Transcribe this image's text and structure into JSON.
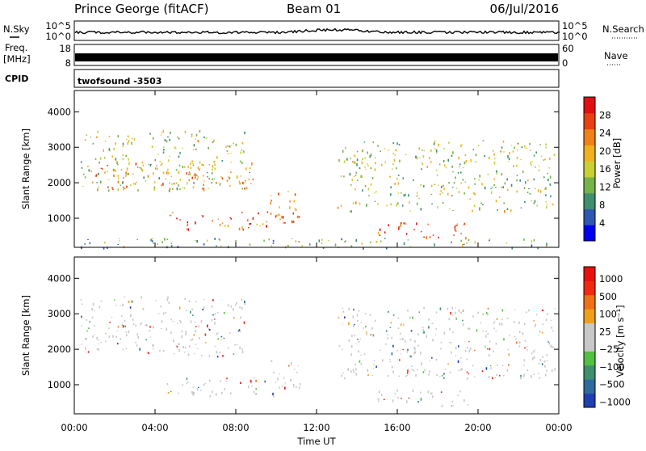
{
  "header": {
    "station": "Prince George (fitACF)",
    "beam": "Beam 01",
    "date": "06/Jul/2016"
  },
  "top_panels": {
    "nsky_label": "N.Sky",
    "nsky_ticks": [
      "10^5",
      "10^0"
    ],
    "nsearch_label": "N.Search",
    "nsearch_ticks": [
      "10^5",
      "10^0"
    ],
    "freq_label_line1": "Freq.",
    "freq_label_line2": "[MHz]",
    "freq_ticks": [
      "18",
      "8"
    ],
    "nave_label": "Nave",
    "nave_ticks": [
      "60",
      "0"
    ],
    "cpid_label": "CPID",
    "cpid_value": "twofsound -3503"
  },
  "colors": {
    "power_scale": [
      "#0000ee",
      "#2f56b0",
      "#3f8f6e",
      "#76b24a",
      "#c8d035",
      "#f0b020",
      "#f08018",
      "#e84010",
      "#e01010"
    ],
    "velocity_scale": [
      "#1f3fb0",
      "#2e6a9a",
      "#3f8f6e",
      "#52c040",
      "#c8c8c8",
      "#c8c8c8",
      "#f0a018",
      "#f07018",
      "#f02a10",
      "#e81010"
    ]
  },
  "chart_data": [
    {
      "type": "heatmap",
      "name": "power",
      "ylabel": "Slant Range [km]",
      "ylim": [
        180,
        4600
      ],
      "yticks": [
        1000,
        2000,
        3000,
        4000
      ],
      "x_ticks": [
        "00:00",
        "04:00",
        "08:00",
        "12:00",
        "16:00",
        "20:00",
        "00:00"
      ],
      "xlim_hours": [
        0,
        24
      ],
      "colorbar": {
        "label": "Power [dB]",
        "range": [
          0,
          32
        ],
        "ticks": [
          "4",
          "8",
          "12",
          "16",
          "20",
          "24",
          "28"
        ]
      },
      "regions": [
        {
          "t": [
            0.3,
            8.5
          ],
          "r": [
            1800,
            3500
          ],
          "level": 0.45
        },
        {
          "t": [
            1.0,
            9.0
          ],
          "r": [
            1800,
            2600
          ],
          "level": 0.7
        },
        {
          "t": [
            4.5,
            10.5
          ],
          "r": [
            700,
            1200
          ],
          "level": 0.9
        },
        {
          "t": [
            9.5,
            11.2
          ],
          "r": [
            900,
            1800
          ],
          "level": 0.75
        },
        {
          "t": [
            13.0,
            23.8
          ],
          "r": [
            1200,
            3200
          ],
          "level": 0.45
        },
        {
          "t": [
            15.0,
            19.5
          ],
          "r": [
            400,
            900
          ],
          "level": 0.9
        },
        {
          "t": [
            0,
            24
          ],
          "r": [
            180,
            450
          ],
          "level": 0.35
        }
      ]
    },
    {
      "type": "heatmap",
      "name": "velocity",
      "ylabel": "Slant Range [km]",
      "xlabel": "Time UT",
      "ylim": [
        180,
        4600
      ],
      "yticks": [
        1000,
        2000,
        3000,
        4000
      ],
      "x_ticks": [
        "00:00",
        "04:00",
        "08:00",
        "12:00",
        "16:00",
        "20:00",
        "00:00"
      ],
      "xlim_hours": [
        0,
        24
      ],
      "colorbar": {
        "label": "Velocity [m s⁻¹]",
        "ticks": [
          "1000",
          "500",
          "100",
          "25",
          "−25",
          "−100",
          "−500",
          "−1000"
        ]
      },
      "regions": [
        {
          "t": [
            0.3,
            8.5
          ],
          "r": [
            1800,
            3500
          ],
          "level": 0.5
        },
        {
          "t": [
            4.5,
            10.5
          ],
          "r": [
            700,
            1200
          ],
          "level": 0.4
        },
        {
          "t": [
            9.5,
            11.2
          ],
          "r": [
            900,
            1800
          ],
          "level": 0.2
        },
        {
          "t": [
            13.0,
            23.8
          ],
          "r": [
            1200,
            3200
          ],
          "level": 0.5
        },
        {
          "t": [
            15.0,
            19.5
          ],
          "r": [
            400,
            900
          ],
          "level": 0.5
        }
      ]
    }
  ]
}
